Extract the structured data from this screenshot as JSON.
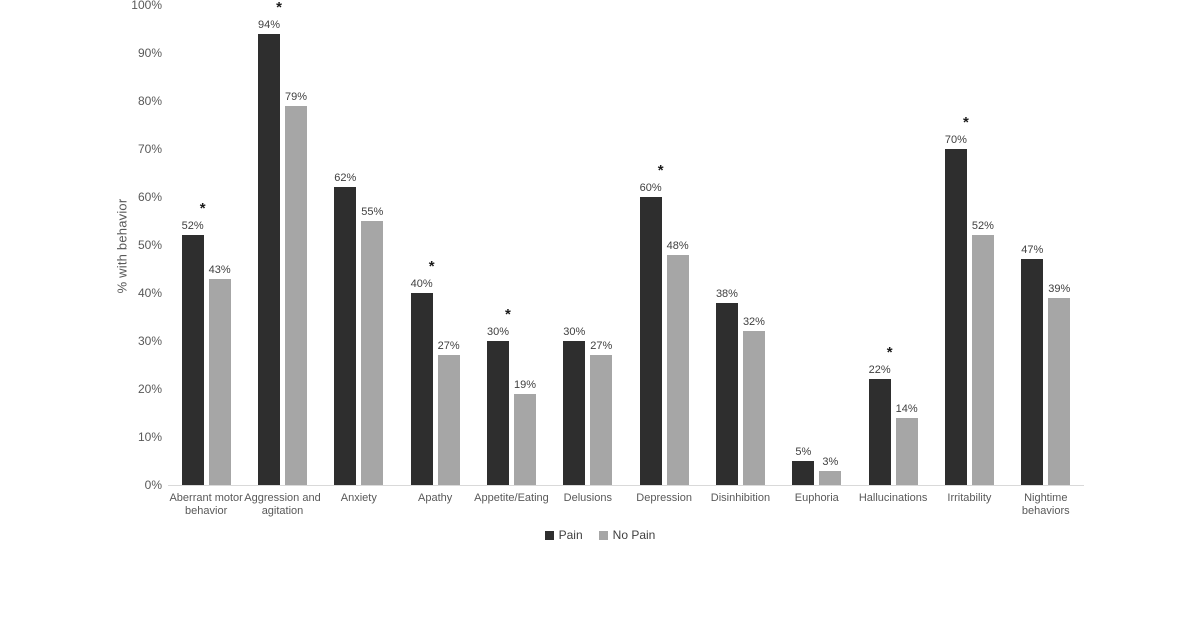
{
  "chart_data": {
    "type": "bar",
    "title": "",
    "xlabel": "",
    "ylabel": "% with behavior",
    "ylim": [
      0,
      100
    ],
    "ytick_interval": 10,
    "yticks": [
      "100%",
      "90%",
      "80%",
      "70%",
      "60%",
      "50%",
      "40%",
      "30%",
      "20%",
      "10%",
      "0%"
    ],
    "grid": false,
    "legend_position": "bottom-center",
    "categories": [
      "Aberrant motor behavior",
      "Aggression and agitation",
      "Anxiety",
      "Apathy",
      "Appetite/Eating",
      "Delusions",
      "Depression",
      "Disinhibition",
      "Euphoria",
      "Hallucinations",
      "Irritability",
      "Nightime behaviors"
    ],
    "series": [
      {
        "name": "Pain",
        "color": "#2e2e2e",
        "values": [
          52,
          94,
          62,
          40,
          30,
          30,
          60,
          38,
          5,
          22,
          70,
          47
        ],
        "data_labels": [
          "52%",
          "94%",
          "62%",
          "40%",
          "30%",
          "30%",
          "60%",
          "38%",
          "5%",
          "22%",
          "70%",
          "47%"
        ]
      },
      {
        "name": "No Pain",
        "color": "#a6a6a6",
        "values": [
          43,
          79,
          55,
          27,
          19,
          27,
          48,
          32,
          3,
          14,
          52,
          39
        ],
        "data_labels": [
          "43%",
          "79%",
          "55%",
          "27%",
          "19%",
          "27%",
          "48%",
          "32%",
          "3%",
          "14%",
          "52%",
          "39%"
        ]
      }
    ],
    "significance_marker": "*",
    "significant_categories": [
      true,
      true,
      false,
      true,
      true,
      false,
      true,
      false,
      false,
      true,
      true,
      false
    ]
  },
  "colors": {
    "axis_line": "#d9d9d9",
    "axis_text": "#595959",
    "data_label_text": "#404040"
  }
}
